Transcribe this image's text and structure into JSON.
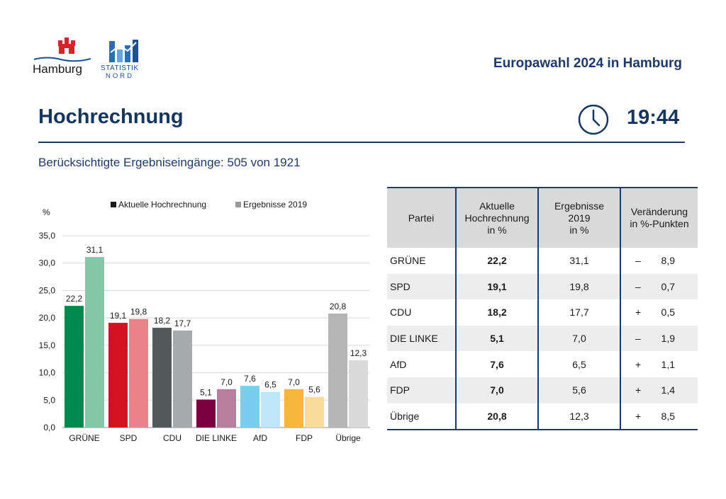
{
  "header": {
    "logo_hamburg_text": "Hamburg",
    "logo_statistik_line1": "STATISTIK",
    "logo_statistik_line2": "NORD",
    "election_title": "Europawahl 2024 in Hamburg",
    "page_title": "Hochrechnung",
    "time": "19:44",
    "subtitle": "Berücksichtigte Ergebniseingänge: 505 von 1921"
  },
  "colors": {
    "navy": "#1f3a68",
    "party_current": [
      "#00894f",
      "#d1131f",
      "#525a5c",
      "#7a0041",
      "#7bcdf0",
      "#f6b73c",
      "#b5b5b5"
    ],
    "party_prev": [
      "#82c8a6",
      "#e8838a",
      "#a5abad",
      "#b77e9d",
      "#bfe6f7",
      "#fbdb9d",
      "#dadada"
    ]
  },
  "chart_data": {
    "type": "bar",
    "ylabel": "%",
    "ylim": [
      0,
      35
    ],
    "yticks": [
      "0,0",
      "5,0",
      "10,0",
      "15,0",
      "20,0",
      "25,0",
      "30,0",
      "35,0"
    ],
    "grid": true,
    "legend_position": "top",
    "categories": [
      "GRÜNE",
      "SPD",
      "CDU",
      "DIE LINKE",
      "AfD",
      "FDP",
      "Übrige"
    ],
    "series": [
      {
        "name": "Aktuelle Hochrechnung",
        "values": [
          22.2,
          19.1,
          18.2,
          5.1,
          7.6,
          7.0,
          20.8
        ],
        "labels": [
          "22,2",
          "19,1",
          "18,2",
          "5,1",
          "7,6",
          "7,0",
          "20,8"
        ]
      },
      {
        "name": "Ergebnisse 2019",
        "values": [
          31.1,
          19.8,
          17.7,
          7.0,
          6.5,
          5.6,
          12.3
        ],
        "labels": [
          "31,1",
          "19,8",
          "17,7",
          "7,0",
          "6,5",
          "5,6",
          "12,3"
        ]
      }
    ]
  },
  "table": {
    "headers": {
      "party": [
        "Partei"
      ],
      "current": [
        "Aktuelle",
        "Hochrechnung",
        "in %"
      ],
      "prev": [
        "Ergebnisse",
        "2019",
        "in %"
      ],
      "change": [
        "Veränderung",
        "in %-Punkten"
      ]
    },
    "rows": [
      {
        "party": "GRÜNE",
        "current": "22,2",
        "prev": "31,1",
        "sign": "–",
        "change": "8,9"
      },
      {
        "party": "SPD",
        "current": "19,1",
        "prev": "19,8",
        "sign": "–",
        "change": "0,7"
      },
      {
        "party": "CDU",
        "current": "18,2",
        "prev": "17,7",
        "sign": "+",
        "change": "0,5"
      },
      {
        "party": "DIE LINKE",
        "current": "5,1",
        "prev": "7,0",
        "sign": "–",
        "change": "1,9"
      },
      {
        "party": "AfD",
        "current": "7,6",
        "prev": "6,5",
        "sign": "+",
        "change": "1,1"
      },
      {
        "party": "FDP",
        "current": "7,0",
        "prev": "5,6",
        "sign": "+",
        "change": "1,4"
      },
      {
        "party": "Übrige",
        "current": "20,8",
        "prev": "12,3",
        "sign": "+",
        "change": "8,5"
      }
    ]
  }
}
